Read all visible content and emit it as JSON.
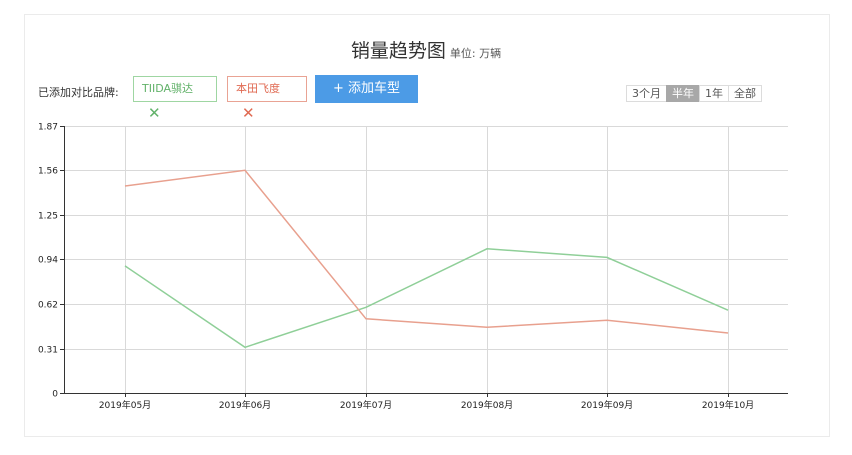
{
  "header": {
    "title": "销量趋势图",
    "unit": "单位: 万辆"
  },
  "compare": {
    "label": "已添加对比品牌:",
    "tags": [
      {
        "name": "TIIDA骐达",
        "remove": "✕",
        "color": "#62b26a"
      },
      {
        "name": "本田飞度",
        "remove": "✕",
        "color": "#e06a52"
      }
    ],
    "add_button": "+ 添加车型"
  },
  "ranges": {
    "options": [
      "3个月",
      "半年",
      "1年",
      "全部"
    ],
    "selected": "半年"
  },
  "chart_data": {
    "type": "line",
    "x": [
      "2019年05月",
      "2019年06月",
      "2019年07月",
      "2019年08月",
      "2019年09月",
      "2019年10月"
    ],
    "ylim": [
      0,
      1.87
    ],
    "yticks": [
      "0",
      "0.31",
      "0.62",
      "0.94",
      "1.25",
      "1.56",
      "1.87"
    ],
    "grid": true,
    "series": [
      {
        "name": "TIIDA骐达",
        "color": "#8fcf98",
        "values": [
          0.89,
          0.32,
          0.6,
          1.01,
          0.95,
          0.58
        ]
      },
      {
        "name": "本田飞度",
        "color": "#e8a08e",
        "values": [
          1.45,
          1.56,
          0.52,
          0.46,
          0.51,
          0.42
        ]
      }
    ]
  }
}
